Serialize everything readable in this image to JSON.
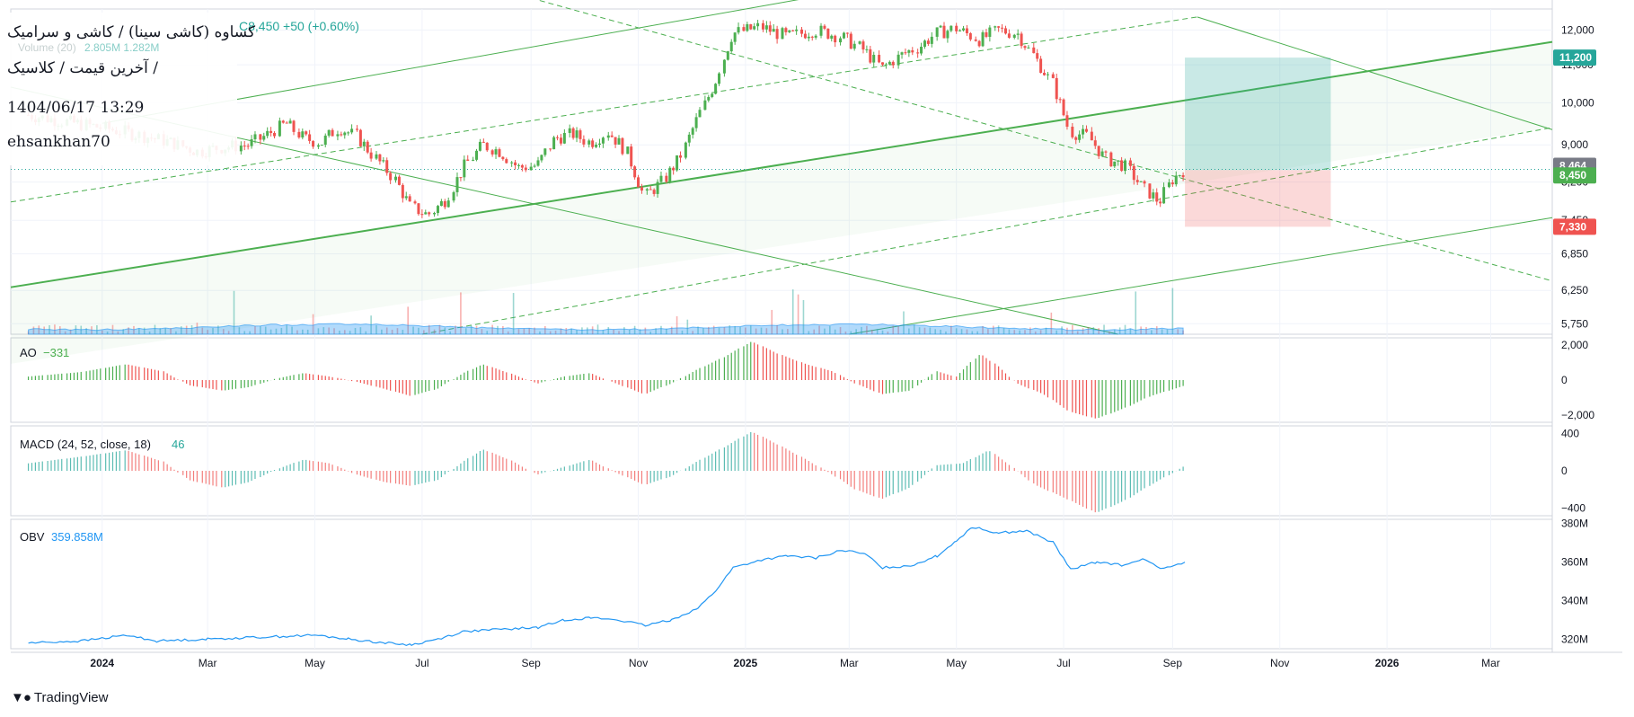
{
  "header": {
    "line1": "کساوه (کاشی سینا) / کاشی و سرامیک",
    "line2": "آخرین قیمت / کلاسیک /",
    "line3": "1404/06/17 13:29",
    "line4": "ehsankhan70",
    "price_change": "C8,450  +50 (+0.60%)",
    "volume_label": "Volume (20)",
    "volume_values": "2.805M   1.282M"
  },
  "brand": {
    "name": "TradingView"
  },
  "colors": {
    "up": "#26a69a",
    "up_candle": "#4caf50",
    "down": "#ef5350",
    "channel": "#4caf50",
    "obv": "#2196f3",
    "target_zone": "#b2dfdb",
    "stop_zone": "#f8bbd0",
    "last_price_badge": "#4caf50",
    "ref_badge": "#787b86",
    "target_badge": "#26a69a",
    "stop_badge": "#ef5350"
  },
  "chart_data": [
    {
      "type": "candlestick",
      "name": "main",
      "y_scale": "log",
      "y_ticks": [
        "12,000",
        "11,000",
        "10,000",
        "9,000",
        "8,200",
        "7,450",
        "6,850",
        "6,250",
        "5,750"
      ],
      "badges": [
        {
          "label": "11,200",
          "value": 11200,
          "kind": "target"
        },
        {
          "label": "8,464",
          "value": 8464,
          "kind": "ref"
        },
        {
          "label": "8,450",
          "value": 8450,
          "kind": "last"
        },
        {
          "label": "7,330",
          "value": 7330,
          "kind": "stop"
        }
      ],
      "position_tool": {
        "entry": 8450,
        "target": 11200,
        "stop": 7330,
        "from": "2025-09-08",
        "to": "2025-11-30"
      },
      "series_close": [
        [
          "2023-11-20",
          9700
        ],
        [
          "2023-12-10",
          9550
        ],
        [
          "2024-01-01",
          9400
        ],
        [
          "2024-01-20",
          9250
        ],
        [
          "2024-02-10",
          9050
        ],
        [
          "2024-02-25",
          8850
        ],
        [
          "2024-03-10",
          8950
        ],
        [
          "2024-03-25",
          9000
        ],
        [
          "2024-04-05",
          9250
        ],
        [
          "2024-04-15",
          9500
        ],
        [
          "2024-04-25",
          9150
        ],
        [
          "2024-05-05",
          9050
        ],
        [
          "2024-05-15",
          9400
        ],
        [
          "2024-05-25",
          9200
        ],
        [
          "2024-06-05",
          8700
        ],
        [
          "2024-06-15",
          8300
        ],
        [
          "2024-06-25",
          7700
        ],
        [
          "2024-07-05",
          7550
        ],
        [
          "2024-07-15",
          7850
        ],
        [
          "2024-07-25",
          8500
        ],
        [
          "2024-08-05",
          9000
        ],
        [
          "2024-08-15",
          8850
        ],
        [
          "2024-08-25",
          8500
        ],
        [
          "2024-09-05",
          8550
        ],
        [
          "2024-09-15",
          9150
        ],
        [
          "2024-09-25",
          9250
        ],
        [
          "2024-10-05",
          9050
        ],
        [
          "2024-10-15",
          9300
        ],
        [
          "2024-10-25",
          8900
        ],
        [
          "2024-11-05",
          7900
        ],
        [
          "2024-11-15",
          8200
        ],
        [
          "2024-11-25",
          8700
        ],
        [
          "2024-12-05",
          9600
        ],
        [
          "2024-12-15",
          10500
        ],
        [
          "2024-12-25",
          11900
        ],
        [
          "2025-01-10",
          12100
        ],
        [
          "2025-01-25",
          11800
        ],
        [
          "2025-02-10",
          12000
        ],
        [
          "2025-02-25",
          11800
        ],
        [
          "2025-03-10",
          11400
        ],
        [
          "2025-03-20",
          10900
        ],
        [
          "2025-04-01",
          11300
        ],
        [
          "2025-04-10",
          11500
        ],
        [
          "2025-04-20",
          11900
        ],
        [
          "2025-05-01",
          12050
        ],
        [
          "2025-05-15",
          11700
        ],
        [
          "2025-05-25",
          12000
        ],
        [
          "2025-06-05",
          11900
        ],
        [
          "2025-06-15",
          11200
        ],
        [
          "2025-06-25",
          10500
        ],
        [
          "2025-07-05",
          9300
        ],
        [
          "2025-07-15",
          9200
        ],
        [
          "2025-07-25",
          8700
        ],
        [
          "2025-08-05",
          8550
        ],
        [
          "2025-08-15",
          8100
        ],
        [
          "2025-08-25",
          7800
        ],
        [
          "2025-09-01",
          8250
        ],
        [
          "2025-09-08",
          8450
        ]
      ]
    },
    {
      "type": "bar",
      "name": "volume",
      "series": [
        {
          "name": "Volume (20)",
          "last": "2.805M",
          "ma": "1.282M"
        }
      ]
    },
    {
      "type": "bar",
      "name": "AO",
      "label": "AO",
      "last_value": "−331",
      "y_ticks": [
        "2,000",
        "0",
        "−2,000"
      ],
      "y_range": [
        -2400,
        2400
      ],
      "points": [
        [
          "2023-11-20",
          200
        ],
        [
          "2023-12-20",
          450
        ],
        [
          "2024-01-15",
          900
        ],
        [
          "2024-02-05",
          500
        ],
        [
          "2024-02-20",
          -300
        ],
        [
          "2024-03-10",
          -600
        ],
        [
          "2024-03-25",
          -400
        ],
        [
          "2024-04-10",
          100
        ],
        [
          "2024-04-25",
          400
        ],
        [
          "2024-05-10",
          200
        ],
        [
          "2024-05-25",
          -100
        ],
        [
          "2024-06-10",
          -500
        ],
        [
          "2024-06-25",
          -900
        ],
        [
          "2024-07-10",
          -500
        ],
        [
          "2024-07-25",
          400
        ],
        [
          "2024-08-05",
          900
        ],
        [
          "2024-08-20",
          400
        ],
        [
          "2024-09-05",
          -200
        ],
        [
          "2024-09-20",
          200
        ],
        [
          "2024-10-05",
          400
        ],
        [
          "2024-10-20",
          -200
        ],
        [
          "2024-11-05",
          -800
        ],
        [
          "2024-11-20",
          -200
        ],
        [
          "2024-12-05",
          600
        ],
        [
          "2024-12-20",
          1300
        ],
        [
          "2025-01-05",
          2200
        ],
        [
          "2025-01-20",
          1500
        ],
        [
          "2025-02-05",
          900
        ],
        [
          "2025-02-20",
          500
        ],
        [
          "2025-03-05",
          -200
        ],
        [
          "2025-03-20",
          -800
        ],
        [
          "2025-04-05",
          -600
        ],
        [
          "2025-04-20",
          500
        ],
        [
          "2025-05-01",
          200
        ],
        [
          "2025-05-15",
          1500
        ],
        [
          "2025-05-25",
          800
        ],
        [
          "2025-06-05",
          -200
        ],
        [
          "2025-06-20",
          -800
        ],
        [
          "2025-07-05",
          -1800
        ],
        [
          "2025-07-20",
          -2200
        ],
        [
          "2025-08-05",
          -1600
        ],
        [
          "2025-08-20",
          -900
        ],
        [
          "2025-09-08",
          -331
        ]
      ]
    },
    {
      "type": "bar",
      "name": "MACD",
      "label": "MACD (24, 52, close, 18)",
      "last_value": "46",
      "y_ticks": [
        "400",
        "0",
        "−400"
      ],
      "y_range": [
        -480,
        480
      ],
      "points": [
        [
          "2023-11-20",
          80
        ],
        [
          "2023-12-20",
          150
        ],
        [
          "2024-01-15",
          220
        ],
        [
          "2024-02-05",
          100
        ],
        [
          "2024-02-20",
          -100
        ],
        [
          "2024-03-10",
          -180
        ],
        [
          "2024-03-25",
          -120
        ],
        [
          "2024-04-10",
          20
        ],
        [
          "2024-04-25",
          120
        ],
        [
          "2024-05-10",
          80
        ],
        [
          "2024-05-25",
          -40
        ],
        [
          "2024-06-10",
          -120
        ],
        [
          "2024-06-25",
          -160
        ],
        [
          "2024-07-10",
          -100
        ],
        [
          "2024-07-25",
          100
        ],
        [
          "2024-08-05",
          230
        ],
        [
          "2024-08-20",
          120
        ],
        [
          "2024-09-05",
          -40
        ],
        [
          "2024-09-20",
          40
        ],
        [
          "2024-10-05",
          120
        ],
        [
          "2024-10-20",
          -20
        ],
        [
          "2024-11-05",
          -150
        ],
        [
          "2024-11-20",
          -60
        ],
        [
          "2024-12-05",
          100
        ],
        [
          "2024-12-20",
          250
        ],
        [
          "2025-01-05",
          420
        ],
        [
          "2025-01-20",
          280
        ],
        [
          "2025-02-05",
          120
        ],
        [
          "2025-02-20",
          -40
        ],
        [
          "2025-03-05",
          -200
        ],
        [
          "2025-03-20",
          -300
        ],
        [
          "2025-04-05",
          -180
        ],
        [
          "2025-04-20",
          60
        ],
        [
          "2025-05-05",
          80
        ],
        [
          "2025-05-20",
          220
        ],
        [
          "2025-06-01",
          60
        ],
        [
          "2025-06-15",
          -150
        ],
        [
          "2025-07-01",
          -280
        ],
        [
          "2025-07-20",
          -450
        ],
        [
          "2025-08-05",
          -320
        ],
        [
          "2025-08-20",
          -150
        ],
        [
          "2025-09-08",
          46
        ]
      ]
    },
    {
      "type": "line",
      "name": "OBV",
      "label": "OBV",
      "last_value": "359.858M",
      "y_ticks": [
        "380M",
        "360M",
        "340M",
        "320M"
      ],
      "y_range": [
        315,
        382
      ],
      "points": [
        [
          "2023-11-20",
          318
        ],
        [
          "2023-12-20",
          319
        ],
        [
          "2024-01-15",
          322
        ],
        [
          "2024-02-01",
          319
        ],
        [
          "2024-03-01",
          320
        ],
        [
          "2024-04-01",
          321
        ],
        [
          "2024-05-01",
          322
        ],
        [
          "2024-05-20",
          320
        ],
        [
          "2024-06-10",
          318
        ],
        [
          "2024-06-25",
          317
        ],
        [
          "2024-07-10",
          320
        ],
        [
          "2024-07-25",
          324
        ],
        [
          "2024-08-15",
          325
        ],
        [
          "2024-09-05",
          326
        ],
        [
          "2024-09-20",
          330
        ],
        [
          "2024-10-05",
          331
        ],
        [
          "2024-10-20",
          330
        ],
        [
          "2024-11-05",
          327
        ],
        [
          "2024-11-20",
          330
        ],
        [
          "2024-12-05",
          336
        ],
        [
          "2024-12-15",
          345
        ],
        [
          "2024-12-25",
          357
        ],
        [
          "2025-01-10",
          361
        ],
        [
          "2025-01-25",
          363
        ],
        [
          "2025-02-10",
          362
        ],
        [
          "2025-02-25",
          366
        ],
        [
          "2025-03-10",
          364
        ],
        [
          "2025-03-20",
          357
        ],
        [
          "2025-04-05",
          358
        ],
        [
          "2025-04-20",
          363
        ],
        [
          "2025-05-01",
          371
        ],
        [
          "2025-05-10",
          378
        ],
        [
          "2025-05-25",
          375
        ],
        [
          "2025-06-10",
          376
        ],
        [
          "2025-06-25",
          370
        ],
        [
          "2025-07-05",
          356
        ],
        [
          "2025-07-20",
          360
        ],
        [
          "2025-08-05",
          358
        ],
        [
          "2025-08-15",
          362
        ],
        [
          "2025-08-25",
          356
        ],
        [
          "2025-09-08",
          359.858
        ]
      ]
    }
  ],
  "time_axis": {
    "labels": [
      {
        "text": "2024",
        "date": "2024-01-01",
        "bold": true
      },
      {
        "text": "Mar",
        "date": "2024-03-01"
      },
      {
        "text": "May",
        "date": "2024-05-01"
      },
      {
        "text": "Jul",
        "date": "2024-07-01"
      },
      {
        "text": "Sep",
        "date": "2024-09-01"
      },
      {
        "text": "Nov",
        "date": "2024-11-01"
      },
      {
        "text": "2025",
        "date": "2025-01-01",
        "bold": true
      },
      {
        "text": "Mar",
        "date": "2025-03-01"
      },
      {
        "text": "May",
        "date": "2025-05-01"
      },
      {
        "text": "Jul",
        "date": "2025-07-01"
      },
      {
        "text": "Sep",
        "date": "2025-09-01"
      },
      {
        "text": "Nov",
        "date": "2025-11-01"
      },
      {
        "text": "2026",
        "date": "2026-01-01",
        "bold": true
      },
      {
        "text": "Mar",
        "date": "2026-03-01"
      }
    ]
  }
}
